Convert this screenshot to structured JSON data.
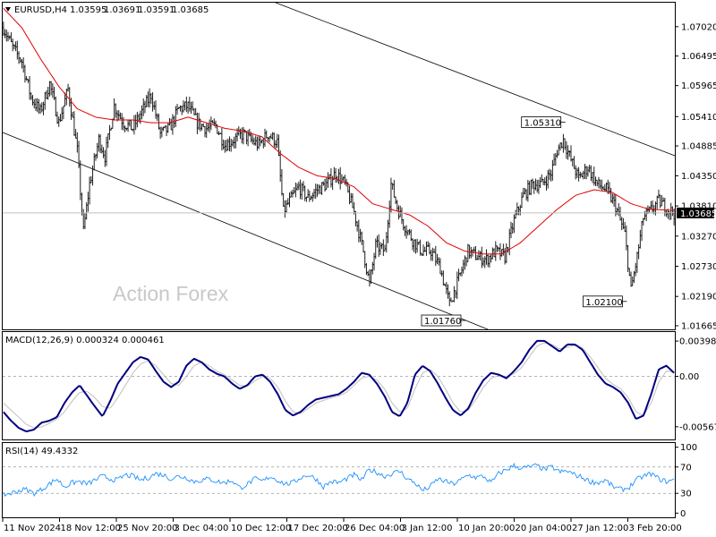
{
  "header": {
    "symbol_label": "EURUSD,H4",
    "ohlc": [
      "1.03595",
      "1.03691",
      "1.03591",
      "1.03685"
    ]
  },
  "watermark": "Action Forex",
  "colors": {
    "bars": "#1f1f1f",
    "ma": "#e00000",
    "macd_line": "#000080",
    "macd_signal": "#c0c0c0",
    "rsi": "#1e90ff",
    "last_price_bg": "#000000"
  },
  "chart_data": [
    {
      "type": "bar",
      "panel": "price",
      "title": "EURUSD,H4",
      "y_ticks": [
        "1.07020",
        "1.06495",
        "1.05965",
        "1.05410",
        "1.04885",
        "1.04350",
        "1.03810",
        "1.03270",
        "1.02730",
        "1.02190",
        "1.01665"
      ],
      "ylim": [
        1.016,
        1.0745
      ],
      "last_price": "1.03685",
      "annotations": [
        {
          "label": "1.05310",
          "x": "23 Jan",
          "value": 1.0531
        },
        {
          "label": "1.01760",
          "x": "13 Jan",
          "value": 1.0176
        },
        {
          "label": "1.02100",
          "x": "3 Feb",
          "value": 1.021
        }
      ],
      "x_ticks": [
        "11 Nov 2024",
        "18 Nov 12:00",
        "25 Nov 20:00",
        "3 Dec 04:00",
        "10 Dec 12:00",
        "17 Dec 20:00",
        "26 Dec 04:00",
        "3 Jan 12:00",
        "10 Jan 20:00",
        "20 Jan 04:00",
        "27 Jan 12:00",
        "3 Feb 20:00"
      ],
      "close_path": [
        [
          0,
          1.07
        ],
        [
          6,
          1.0665
        ],
        [
          12,
          1.064
        ],
        [
          18,
          1.0575
        ],
        [
          24,
          1.055
        ],
        [
          30,
          1.06
        ],
        [
          36,
          1.053
        ],
        [
          42,
          1.059
        ],
        [
          48,
          1.048
        ],
        [
          52,
          1.0335
        ],
        [
          56,
          1.042
        ],
        [
          62,
          1.05
        ],
        [
          66,
          1.047
        ],
        [
          72,
          1.056
        ],
        [
          78,
          1.053
        ],
        [
          84,
          1.052
        ],
        [
          90,
          1.055
        ],
        [
          96,
          1.058
        ],
        [
          102,
          1.051
        ],
        [
          108,
          1.052
        ],
        [
          114,
          1.0555
        ],
        [
          120,
          1.056
        ],
        [
          126,
          1.053
        ],
        [
          132,
          1.052
        ],
        [
          138,
          1.0525
        ],
        [
          144,
          1.049
        ],
        [
          150,
          1.05
        ],
        [
          156,
          1.051
        ],
        [
          160,
          1.05
        ],
        [
          166,
          1.049
        ],
        [
          172,
          1.051
        ],
        [
          178,
          1.0495
        ],
        [
          182,
          1.037
        ],
        [
          186,
          1.039
        ],
        [
          192,
          1.0415
        ],
        [
          198,
          1.0395
        ],
        [
          204,
          1.041
        ],
        [
          210,
          1.042
        ],
        [
          216,
          1.044
        ],
        [
          222,
          1.042
        ],
        [
          228,
          1.037
        ],
        [
          234,
          1.03
        ],
        [
          238,
          1.024
        ],
        [
          242,
          1.031
        ],
        [
          248,
          1.03
        ],
        [
          252,
          1.042
        ],
        [
          256,
          1.038
        ],
        [
          260,
          1.035
        ],
        [
          266,
          1.032
        ],
        [
          272,
          1.03
        ],
        [
          278,
          1.03
        ],
        [
          284,
          1.027
        ],
        [
          290,
          1.0205
        ],
        [
          296,
          1.025
        ],
        [
          302,
          1.03
        ],
        [
          308,
          1.029
        ],
        [
          314,
          1.0285
        ],
        [
          320,
          1.03
        ],
        [
          326,
          1.029
        ],
        [
          332,
          1.0355
        ],
        [
          338,
          1.04
        ],
        [
          344,
          1.042
        ],
        [
          350,
          1.042
        ],
        [
          356,
          1.044
        ],
        [
          360,
          1.048
        ],
        [
          364,
          1.05
        ],
        [
          368,
          1.047
        ],
        [
          374,
          1.043
        ],
        [
          380,
          1.045
        ],
        [
          386,
          1.042
        ],
        [
          392,
          1.041
        ],
        [
          398,
          1.038
        ],
        [
          404,
          1.033
        ],
        [
          408,
          1.023
        ],
        [
          412,
          1.029
        ],
        [
          416,
          1.036
        ],
        [
          420,
          1.037
        ],
        [
          426,
          1.039
        ],
        [
          432,
          1.0375
        ],
        [
          436,
          1.0368
        ]
      ],
      "ma_path": [
        [
          0,
          1.0735
        ],
        [
          12,
          1.07
        ],
        [
          24,
          1.0645
        ],
        [
          36,
          1.0595
        ],
        [
          48,
          1.0555
        ],
        [
          60,
          1.054
        ],
        [
          72,
          1.0535
        ],
        [
          84,
          1.0535
        ],
        [
          96,
          1.053
        ],
        [
          108,
          1.053
        ],
        [
          120,
          1.054
        ],
        [
          132,
          1.053
        ],
        [
          144,
          1.052
        ],
        [
          156,
          1.0515
        ],
        [
          168,
          1.0505
        ],
        [
          180,
          1.0475
        ],
        [
          192,
          1.045
        ],
        [
          204,
          1.0435
        ],
        [
          216,
          1.043
        ],
        [
          228,
          1.0415
        ],
        [
          240,
          1.0385
        ],
        [
          252,
          1.0375
        ],
        [
          264,
          1.0365
        ],
        [
          276,
          1.0345
        ],
        [
          288,
          1.0315
        ],
        [
          300,
          1.03
        ],
        [
          312,
          1.0295
        ],
        [
          324,
          1.0295
        ],
        [
          336,
          1.0315
        ],
        [
          348,
          1.0345
        ],
        [
          360,
          1.0375
        ],
        [
          372,
          1.04
        ],
        [
          384,
          1.041
        ],
        [
          396,
          1.0405
        ],
        [
          408,
          1.0385
        ],
        [
          420,
          1.0375
        ],
        [
          436,
          1.0373
        ]
      ]
    },
    {
      "type": "line",
      "panel": "macd",
      "title": "MACD(12,26,9) 0.000324 0.000461",
      "y_ticks": [
        "0.003984",
        "0.00",
        "-0.00567"
      ],
      "ylim": [
        -0.007,
        0.0049
      ],
      "series": [
        {
          "name": "MACD",
          "values": [
            -0.004,
            -0.005,
            -0.0058,
            -0.0062,
            -0.006,
            -0.0052,
            -0.005,
            -0.0046,
            -0.003,
            -0.0018,
            -0.001,
            -0.0022,
            -0.0034,
            -0.0045,
            -0.0028,
            -0.0008,
            0.0004,
            0.0016,
            0.0022,
            0.0019,
            0.0006,
            -0.0006,
            -0.0012,
            -0.0006,
            0.0012,
            0.002,
            0.0016,
            0.0008,
            0.0003,
            0.0,
            -0.0008,
            -0.0014,
            -0.001,
            0.0,
            0.0002,
            -0.0006,
            -0.002,
            -0.0038,
            -0.0044,
            -0.004,
            -0.0032,
            -0.0026,
            -0.0024,
            -0.0022,
            -0.002,
            -0.0014,
            -0.0006,
            0.0004,
            0.0002,
            -0.0008,
            -0.0022,
            -0.004,
            -0.0045,
            -0.003,
            0.0002,
            0.0012,
            0.0006,
            -0.0008,
            -0.0024,
            -0.0038,
            -0.0044,
            -0.0036,
            -0.0018,
            -0.0004,
            0.0004,
            0.0002,
            -0.0002,
            0.0006,
            0.0016,
            0.003,
            0.004,
            0.004,
            0.0034,
            0.0028,
            0.0036,
            0.0036,
            0.003,
            0.0016,
            0.0002,
            -0.0008,
            -0.0012,
            -0.0018,
            -0.003,
            -0.0048,
            -0.0044,
            -0.002,
            0.0008,
            0.0012,
            0.0004
          ]
        },
        {
          "name": "Signal",
          "values": [
            -0.003,
            -0.0038,
            -0.0046,
            -0.0054,
            -0.0058,
            -0.0057,
            -0.0053,
            -0.0048,
            -0.004,
            -0.0028,
            -0.0018,
            -0.0017,
            -0.0024,
            -0.0034,
            -0.0036,
            -0.0024,
            -0.001,
            0.0004,
            0.0014,
            0.0018,
            0.0012,
            0.0002,
            -0.0008,
            -0.001,
            0.0,
            0.0012,
            0.0016,
            0.0012,
            0.0006,
            0.0002,
            -0.0004,
            -0.001,
            -0.0011,
            -0.0005,
            0.0,
            -0.0002,
            -0.0012,
            -0.0028,
            -0.004,
            -0.0042,
            -0.0036,
            -0.003,
            -0.0027,
            -0.0024,
            -0.0022,
            -0.0018,
            -0.001,
            -0.0002,
            0.0,
            -0.0004,
            -0.0014,
            -0.003,
            -0.004,
            -0.0036,
            -0.0014,
            0.0004,
            0.0008,
            0.0,
            -0.0014,
            -0.003,
            -0.004,
            -0.0038,
            -0.0026,
            -0.0012,
            -0.0002,
            0.0001,
            0.0,
            0.0003,
            0.001,
            0.0022,
            0.0034,
            0.0038,
            0.0036,
            0.0031,
            0.0033,
            0.0035,
            0.0032,
            0.0022,
            0.001,
            -0.0002,
            -0.0009,
            -0.0014,
            -0.0024,
            -0.004,
            -0.0044,
            -0.003,
            -0.0006,
            0.0006,
            0.0005
          ]
        }
      ]
    },
    {
      "type": "line",
      "panel": "rsi",
      "title": "RSI(14) 49.4332",
      "y_ticks": [
        "100",
        "70",
        "30",
        "0"
      ],
      "ylim": [
        -5,
        105
      ],
      "levels": [
        70,
        30
      ],
      "series": [
        {
          "name": "RSI",
          "values": [
            28,
            30,
            34,
            36,
            30,
            36,
            44,
            52,
            40,
            46,
            48,
            44,
            50,
            56,
            52,
            50,
            58,
            56,
            50,
            54,
            60,
            58,
            52,
            56,
            54,
            48,
            50,
            52,
            48,
            46,
            50,
            38,
            44,
            52,
            48,
            56,
            50,
            44,
            46,
            54,
            58,
            52,
            40,
            48,
            46,
            52,
            58,
            50,
            66,
            62,
            56,
            60,
            64,
            52,
            46,
            34,
            40,
            52,
            48,
            44,
            50,
            58,
            54,
            56,
            46,
            60,
            66,
            72,
            68,
            70,
            72,
            66,
            70,
            62,
            64,
            58,
            54,
            48,
            46,
            50,
            40,
            36,
            38,
            50,
            56,
            60,
            52,
            48,
            50
          ]
        }
      ]
    }
  ]
}
